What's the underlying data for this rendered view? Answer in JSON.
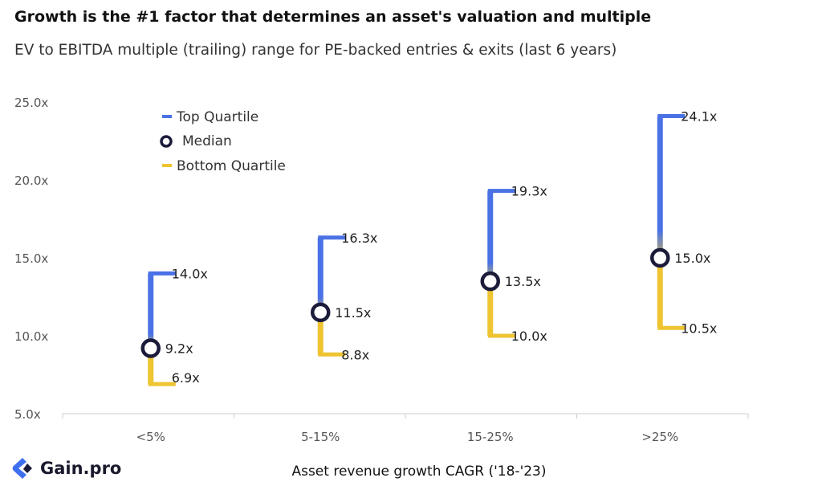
{
  "header": {
    "title": "Growth is the #1 factor that determines an asset's valuation and multiple",
    "subtitle": "EV to EBITDA multiple (trailing) range for PE-backed entries & exits (last 6 years)"
  },
  "brand": {
    "name": "Gain.pro",
    "logo_icon": "gain-pro-logo-icon"
  },
  "colors": {
    "top": "#4a72e6",
    "bottom": "#eec431",
    "median": "#1b1b3a",
    "axis": "#cccccc",
    "text": "#222222",
    "tick": "#555555"
  },
  "chart_data": {
    "type": "range",
    "xlabel": "Asset revenue growth CAGR ('18-'23)",
    "ylabel": "",
    "ylim": [
      5,
      25
    ],
    "yticks": [
      5,
      10,
      15,
      20,
      25
    ],
    "ytick_labels": [
      "5.0x",
      "10.0x",
      "15.0x",
      "20.0x",
      "25.0x"
    ],
    "categories": [
      "<5%",
      "5-15%",
      "15-25%",
      ">25%"
    ],
    "legend": {
      "placement": "top-left",
      "top": "Top Quartile",
      "median": "Median",
      "bottom": "Bottom Quartile"
    },
    "series": [
      {
        "name": "Top Quartile",
        "values": [
          14.0,
          16.3,
          19.3,
          24.1
        ],
        "labels": [
          "14.0x",
          "16.3x",
          "19.3x",
          "24.1x"
        ]
      },
      {
        "name": "Median",
        "values": [
          9.2,
          11.5,
          13.5,
          15.0
        ],
        "labels": [
          "9.2x",
          "11.5x",
          "13.5x",
          "15.0x"
        ]
      },
      {
        "name": "Bottom Quartile",
        "values": [
          6.9,
          8.8,
          10.0,
          10.5
        ],
        "labels": [
          "6.9x",
          "8.8x",
          "10.0x",
          "10.5x"
        ]
      }
    ]
  }
}
